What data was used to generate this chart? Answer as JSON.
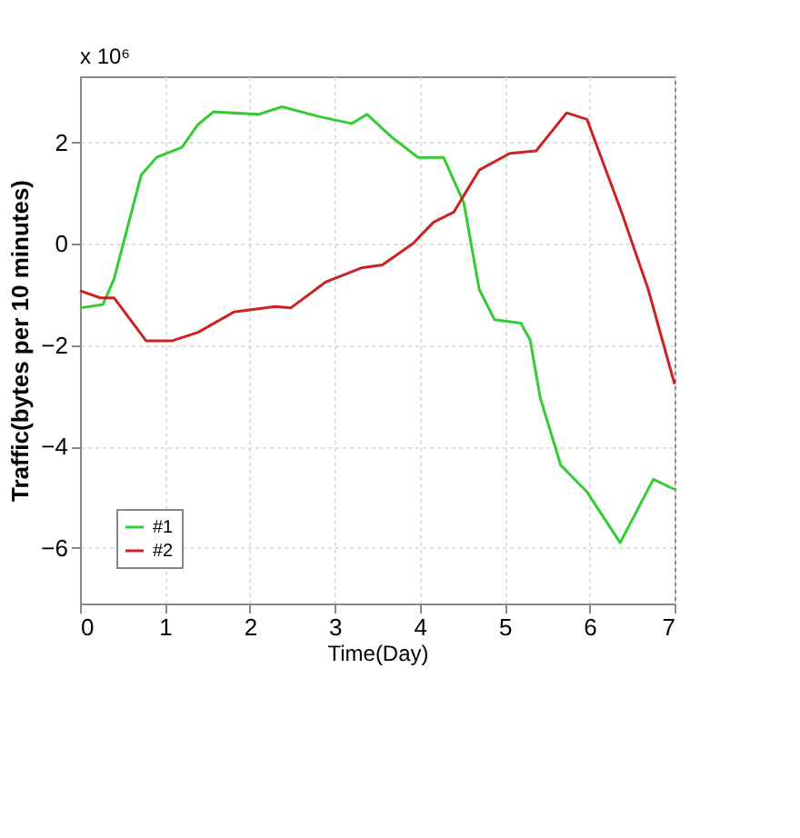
{
  "chart_data": {
    "type": "line",
    "xlabel": "Time(Day)",
    "ylabel": "Traffic(bytes per 10 minutes)",
    "annotations": [
      "x 10⁶"
    ],
    "xlim": [
      0,
      7
    ],
    "xticks": [
      0,
      1,
      2,
      3,
      4,
      5,
      6,
      7
    ],
    "ylim": [
      -7.1,
      3.3
    ],
    "yticks": [
      -6,
      -4,
      -2,
      0,
      2
    ],
    "grid": true,
    "legend": "bottom left",
    "line_style": "solid",
    "marker": "none",
    "series": [
      {
        "name": "#1",
        "color": "#33cc33",
        "x": [
          0,
          0.27,
          0.4,
          0.72,
          0.9,
          1.2,
          1.39,
          1.57,
          2.1,
          2.38,
          2.83,
          3.2,
          3.38,
          3.67,
          3.98,
          4.28,
          4.52,
          4.7,
          4.88,
          5.19,
          5.3,
          5.42,
          5.66,
          5.97,
          6.36,
          6.75,
          7
        ],
        "values": [
          -1.27,
          -1.2,
          -0.7,
          1.35,
          1.7,
          1.9,
          2.35,
          2.6,
          2.55,
          2.7,
          2.5,
          2.37,
          2.55,
          2.1,
          1.7,
          1.7,
          0.8,
          -0.9,
          -1.5,
          -1.57,
          -1.9,
          -3.05,
          -4.37,
          -4.9,
          -5.9,
          -4.65,
          -4.85
        ]
      },
      {
        "name": "#2",
        "color": "#cc2222",
        "x": [
          0,
          0.24,
          0.4,
          0.78,
          1.08,
          1.39,
          1.81,
          2.3,
          2.48,
          2.89,
          3.31,
          3.56,
          3.92,
          4.16,
          4.4,
          4.7,
          5.06,
          5.37,
          5.73,
          5.97,
          6.38,
          6.69,
          7
        ],
        "values": [
          -0.93,
          -1.07,
          -1.07,
          -1.92,
          -1.92,
          -1.75,
          -1.35,
          -1.24,
          -1.27,
          -0.76,
          -0.48,
          -0.42,
          0,
          0.42,
          0.62,
          1.45,
          1.78,
          1.83,
          2.58,
          2.45,
          0.6,
          -0.9,
          -2.77
        ]
      }
    ]
  }
}
